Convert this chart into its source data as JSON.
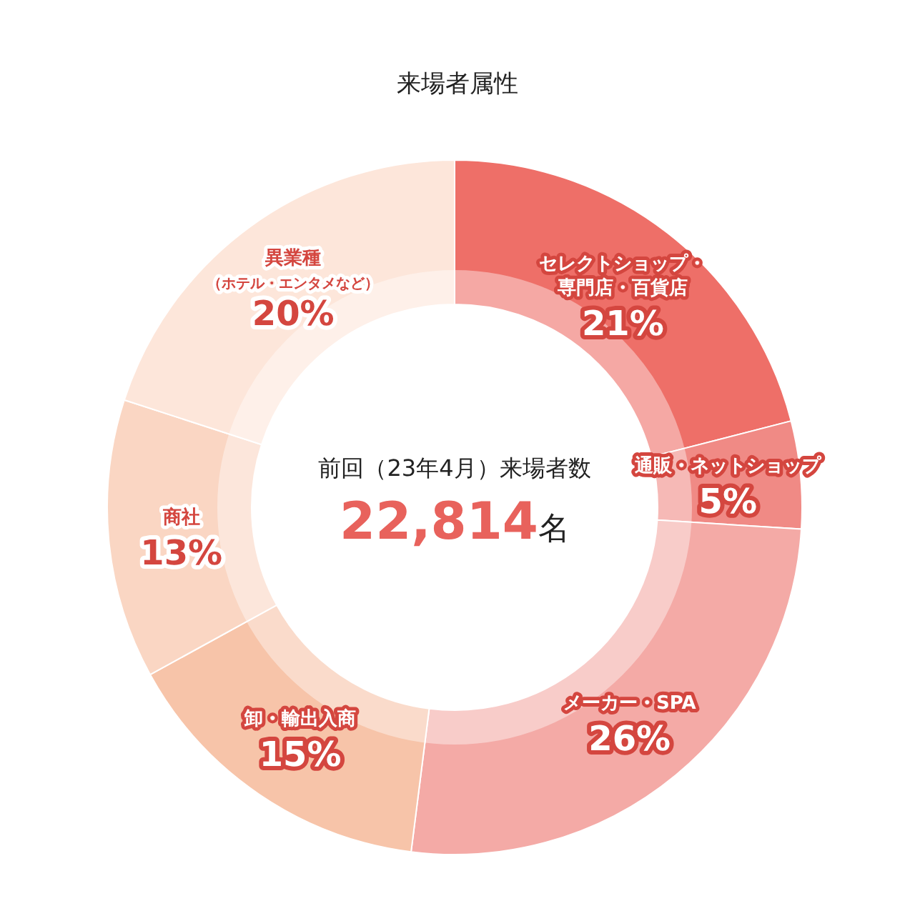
{
  "chart_data": {
    "type": "donut",
    "title": "来場者属性",
    "categories": [
      "セレクトショップ・専門店・百貨店",
      "通販・ネットショップ",
      "メーカー・SPA",
      "卸・輸出入商",
      "商社",
      "異業種（ホテル・エンタメなど）"
    ],
    "values": [
      21,
      5,
      26,
      15,
      13,
      20
    ],
    "value_labels": [
      "21%",
      "5%",
      "26%",
      "15%",
      "13%",
      "20%"
    ],
    "colors": [
      "#ee6f68",
      "#f08a85",
      "#f4aaa6",
      "#f7c4a9",
      "#fad6c3",
      "#fde6da"
    ],
    "annotations": [
      "前回（23年4月）来場者数",
      "22,814",
      "名"
    ]
  }
}
